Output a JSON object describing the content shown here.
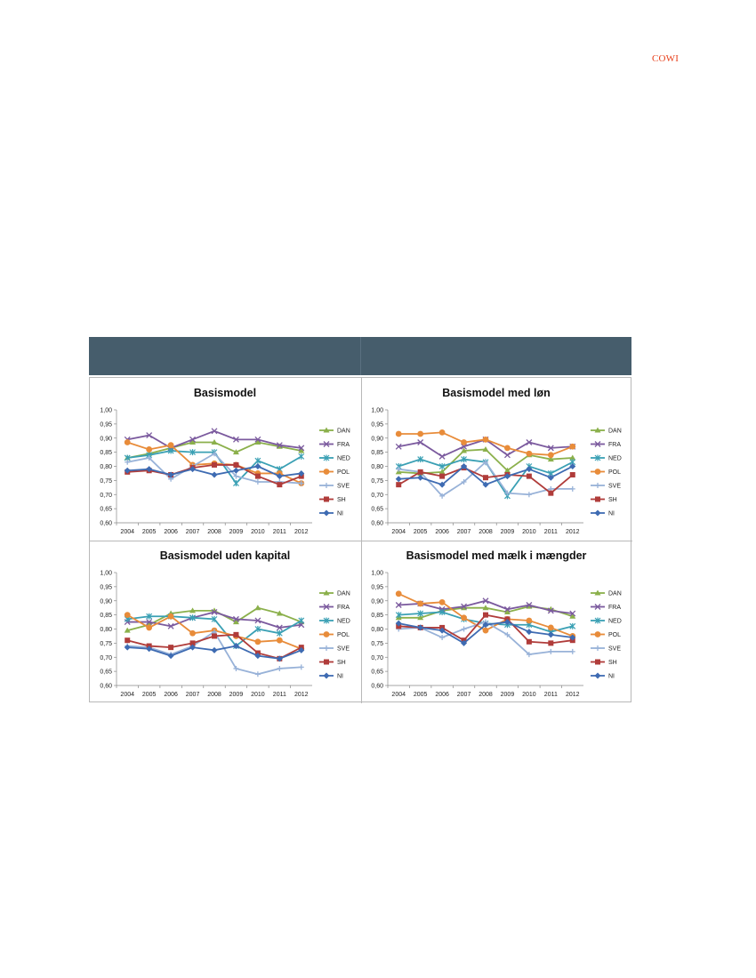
{
  "logo_text": "COWI",
  "chart_data": [
    {
      "type": "line",
      "title": "Basismodel",
      "x": [
        "2004",
        "2005",
        "2006",
        "2007",
        "2008",
        "2009",
        "2010",
        "2011",
        "2012"
      ],
      "ylim": [
        0.6,
        1.0
      ],
      "yticks": [
        "0,60",
        "0,65",
        "0,70",
        "0,75",
        "0,80",
        "0,85",
        "0,90",
        "0,95",
        "1,00"
      ],
      "legend_position": "right",
      "series": [
        {
          "name": "DAN",
          "color": "#8bb04b",
          "marker": "triangle",
          "values": [
            0.83,
            0.845,
            0.865,
            0.885,
            0.885,
            0.85,
            0.885,
            0.87,
            0.855
          ]
        },
        {
          "name": "FRA",
          "color": "#7b5a9e",
          "marker": "x",
          "values": [
            0.895,
            0.91,
            0.865,
            0.895,
            0.925,
            0.895,
            0.895,
            0.875,
            0.865
          ]
        },
        {
          "name": "NED",
          "color": "#3aa0b4",
          "marker": "star",
          "values": [
            0.83,
            0.84,
            0.855,
            0.85,
            0.85,
            0.74,
            0.82,
            0.79,
            0.835
          ]
        },
        {
          "name": "POL",
          "color": "#e88c3a",
          "marker": "circle",
          "values": [
            0.885,
            0.86,
            0.875,
            0.805,
            0.81,
            0.805,
            0.775,
            0.775,
            0.74
          ]
        },
        {
          "name": "SVE",
          "color": "#98b2d8",
          "marker": "plus",
          "values": [
            0.815,
            0.83,
            0.755,
            0.8,
            0.845,
            0.765,
            0.745,
            0.745,
            0.74
          ]
        },
        {
          "name": "SH",
          "color": "#b03c3a",
          "marker": "square",
          "values": [
            0.78,
            0.785,
            0.77,
            0.795,
            0.805,
            0.805,
            0.765,
            0.735,
            0.765
          ]
        },
        {
          "name": "NI",
          "color": "#3e6bb2",
          "marker": "diamond",
          "values": [
            0.785,
            0.79,
            0.77,
            0.79,
            0.77,
            0.785,
            0.8,
            0.765,
            0.775
          ]
        }
      ]
    },
    {
      "type": "line",
      "title": "Basismodel med løn",
      "x": [
        "2004",
        "2005",
        "2006",
        "2007",
        "2008",
        "2009",
        "2010",
        "2011",
        "2012"
      ],
      "ylim": [
        0.6,
        1.0
      ],
      "yticks": [
        "0,60",
        "0,65",
        "0,70",
        "0,75",
        "0,80",
        "0,85",
        "0,90",
        "0,95",
        "1,00"
      ],
      "legend_position": "right",
      "series": [
        {
          "name": "DAN",
          "color": "#8bb04b",
          "marker": "triangle",
          "values": [
            0.78,
            0.775,
            0.78,
            0.855,
            0.86,
            0.785,
            0.84,
            0.825,
            0.83
          ]
        },
        {
          "name": "FRA",
          "color": "#7b5a9e",
          "marker": "x",
          "values": [
            0.87,
            0.885,
            0.835,
            0.87,
            0.895,
            0.84,
            0.885,
            0.865,
            0.87
          ]
        },
        {
          "name": "NED",
          "color": "#3aa0b4",
          "marker": "star",
          "values": [
            0.8,
            0.825,
            0.8,
            0.825,
            0.815,
            0.695,
            0.8,
            0.775,
            0.815
          ]
        },
        {
          "name": "POL",
          "color": "#e88c3a",
          "marker": "circle",
          "values": [
            0.915,
            0.915,
            0.92,
            0.885,
            0.895,
            0.865,
            0.845,
            0.84,
            0.87
          ]
        },
        {
          "name": "SVE",
          "color": "#98b2d8",
          "marker": "plus",
          "values": [
            0.79,
            0.78,
            0.695,
            0.745,
            0.815,
            0.705,
            0.7,
            0.72,
            0.72
          ]
        },
        {
          "name": "SH",
          "color": "#b03c3a",
          "marker": "square",
          "values": [
            0.735,
            0.78,
            0.765,
            0.795,
            0.76,
            0.77,
            0.765,
            0.705,
            0.77
          ]
        },
        {
          "name": "NI",
          "color": "#3e6bb2",
          "marker": "diamond",
          "values": [
            0.755,
            0.76,
            0.735,
            0.8,
            0.735,
            0.765,
            0.79,
            0.76,
            0.8
          ]
        }
      ]
    },
    {
      "type": "line",
      "title": "Basismodel uden kapital",
      "x": [
        "2004",
        "2005",
        "2006",
        "2007",
        "2008",
        "2009",
        "2010",
        "2011",
        "2012"
      ],
      "ylim": [
        0.6,
        1.0
      ],
      "yticks": [
        "0,60",
        "0,65",
        "0,70",
        "0,75",
        "0,80",
        "0,85",
        "0,90",
        "0,95",
        "1,00"
      ],
      "legend_position": "right",
      "series": [
        {
          "name": "DAN",
          "color": "#8bb04b",
          "marker": "triangle",
          "values": [
            0.795,
            0.815,
            0.855,
            0.865,
            0.865,
            0.825,
            0.875,
            0.855,
            0.825
          ]
        },
        {
          "name": "FRA",
          "color": "#7b5a9e",
          "marker": "x",
          "values": [
            0.825,
            0.825,
            0.81,
            0.84,
            0.86,
            0.835,
            0.83,
            0.805,
            0.815
          ]
        },
        {
          "name": "NED",
          "color": "#3aa0b4",
          "marker": "star",
          "values": [
            0.835,
            0.845,
            0.845,
            0.84,
            0.835,
            0.74,
            0.8,
            0.785,
            0.83
          ]
        },
        {
          "name": "POL",
          "color": "#e88c3a",
          "marker": "circle",
          "values": [
            0.85,
            0.805,
            0.845,
            0.785,
            0.795,
            0.775,
            0.755,
            0.76,
            0.73
          ]
        },
        {
          "name": "SVE",
          "color": "#98b2d8",
          "marker": "plus",
          "values": [
            0.74,
            0.735,
            0.71,
            0.74,
            0.79,
            0.66,
            0.64,
            0.66,
            0.665
          ]
        },
        {
          "name": "SH",
          "color": "#b03c3a",
          "marker": "square",
          "values": [
            0.76,
            0.74,
            0.735,
            0.75,
            0.775,
            0.78,
            0.715,
            0.695,
            0.735
          ]
        },
        {
          "name": "NI",
          "color": "#3e6bb2",
          "marker": "diamond",
          "values": [
            0.735,
            0.73,
            0.705,
            0.735,
            0.725,
            0.74,
            0.705,
            0.695,
            0.725
          ]
        }
      ]
    },
    {
      "type": "line",
      "title": "Basismodel med mælk i mængder",
      "x": [
        "2004",
        "2005",
        "2006",
        "2007",
        "2008",
        "2009",
        "2010",
        "2011",
        "2012"
      ],
      "ylim": [
        0.6,
        1.0
      ],
      "yticks": [
        "0,60",
        "0,65",
        "0,70",
        "0,75",
        "0,80",
        "0,85",
        "0,90",
        "0,95",
        "1,00"
      ],
      "legend_position": "right",
      "series": [
        {
          "name": "DAN",
          "color": "#8bb04b",
          "marker": "triangle",
          "values": [
            0.84,
            0.84,
            0.865,
            0.875,
            0.875,
            0.86,
            0.88,
            0.87,
            0.845
          ]
        },
        {
          "name": "FRA",
          "color": "#7b5a9e",
          "marker": "x",
          "values": [
            0.885,
            0.89,
            0.87,
            0.88,
            0.9,
            0.87,
            0.885,
            0.865,
            0.855
          ]
        },
        {
          "name": "NED",
          "color": "#3aa0b4",
          "marker": "star",
          "values": [
            0.85,
            0.855,
            0.86,
            0.835,
            0.82,
            0.815,
            0.815,
            0.79,
            0.81
          ]
        },
        {
          "name": "POL",
          "color": "#e88c3a",
          "marker": "circle",
          "values": [
            0.925,
            0.89,
            0.895,
            0.84,
            0.795,
            0.835,
            0.83,
            0.805,
            0.775
          ]
        },
        {
          "name": "SVE",
          "color": "#98b2d8",
          "marker": "plus",
          "values": [
            0.8,
            0.805,
            0.77,
            0.8,
            0.825,
            0.78,
            0.71,
            0.72,
            0.72
          ]
        },
        {
          "name": "SH",
          "color": "#b03c3a",
          "marker": "square",
          "values": [
            0.81,
            0.805,
            0.805,
            0.76,
            0.85,
            0.835,
            0.755,
            0.75,
            0.76
          ]
        },
        {
          "name": "NI",
          "color": "#3e6bb2",
          "marker": "diamond",
          "values": [
            0.82,
            0.805,
            0.795,
            0.75,
            0.815,
            0.825,
            0.79,
            0.78,
            0.77
          ]
        }
      ]
    }
  ]
}
